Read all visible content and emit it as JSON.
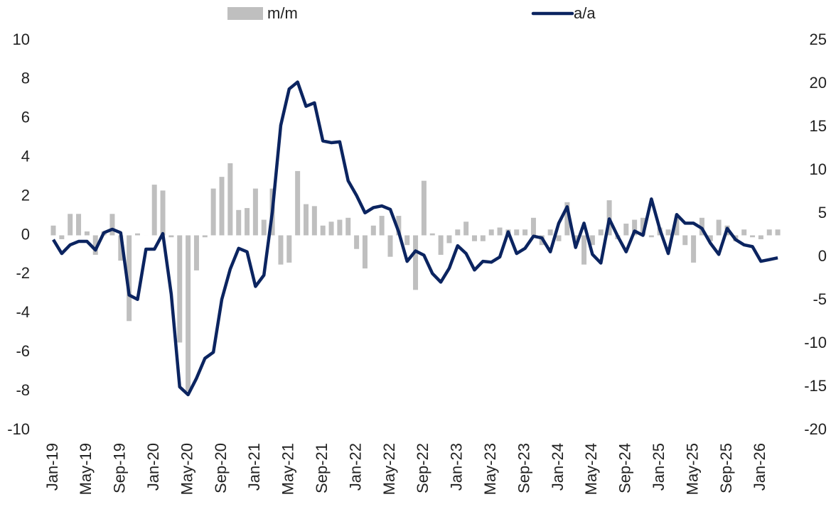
{
  "chart_data": {
    "type": "combo",
    "categories": [
      "Jan-19",
      null,
      null,
      null,
      "May-19",
      null,
      null,
      null,
      "Sep-19",
      null,
      null,
      null,
      "Jan-20",
      null,
      null,
      null,
      "May-20",
      null,
      null,
      null,
      "Sep-20",
      null,
      null,
      null,
      "Jan-21",
      null,
      null,
      null,
      "May-21",
      null,
      null,
      null,
      "Sep-21",
      null,
      null,
      null,
      "Jan-22",
      null,
      null,
      null,
      "May-22",
      null,
      null,
      null,
      "Sep-22",
      null,
      null,
      null,
      "Jan-23",
      null,
      null,
      null,
      "May-23",
      null,
      null,
      null,
      "Sep-23",
      null,
      null,
      null,
      "Jan-24",
      null,
      null,
      null,
      "May-24",
      null,
      null,
      null,
      "Sep-24",
      null,
      null,
      null,
      "Jan-25",
      null,
      null,
      null,
      "May-25",
      null,
      null,
      null,
      "Sep-25",
      null,
      null,
      null,
      "Jan-26",
      null,
      null
    ],
    "series": [
      {
        "name": "m/m",
        "type": "bar",
        "color": "#bfbfbf",
        "values": [
          0.5,
          -0.2,
          1.1,
          1.1,
          0.2,
          -1.0,
          0.2,
          1.1,
          -1.3,
          -4.4,
          0.1,
          0.0,
          2.6,
          2.3,
          -0.1,
          -5.5,
          -8.0,
          -1.8,
          -0.1,
          2.4,
          3.0,
          3.7,
          1.3,
          1.4,
          2.4,
          0.8,
          2.4,
          -1.5,
          -1.4,
          3.3,
          1.6,
          1.5,
          0.5,
          0.7,
          0.8,
          0.9,
          -0.7,
          -1.7,
          0.5,
          1.0,
          -1.1,
          1.0,
          -0.5,
          -2.8,
          2.8,
          0.1,
          -1.0,
          -0.4,
          0.3,
          0.7,
          -0.3,
          -0.3,
          0.3,
          0.4,
          0.3,
          0.3,
          0.3,
          0.9,
          -0.5,
          0.3,
          -0.3,
          1.7,
          -0.3,
          -1.5,
          -0.5,
          0.3,
          1.8,
          -0.2,
          0.6,
          0.8,
          0.9,
          -0.1,
          0.4,
          0.3,
          0.9,
          -0.5,
          -1.4,
          0.9,
          -0.3,
          0.8,
          0.5,
          -0.3,
          0.3,
          -0.1,
          -0.2,
          0.3,
          0.3
        ]
      },
      {
        "name": "a/a",
        "type": "line",
        "axis": "y2",
        "color": "#0b2460",
        "values": [
          2.0,
          0.4,
          1.4,
          1.8,
          1.8,
          0.8,
          2.8,
          3.2,
          2.8,
          -4.4,
          -4.9,
          0.9,
          0.9,
          2.7,
          -4.3,
          -15.0,
          -15.9,
          -14.0,
          -11.7,
          -11.0,
          -4.9,
          -1.4,
          1.0,
          0.6,
          -3.4,
          -2.1,
          5.2,
          15.2,
          19.4,
          20.2,
          17.4,
          17.8,
          13.4,
          13.2,
          13.3,
          8.8,
          7.1,
          5.1,
          5.7,
          5.9,
          5.5,
          2.9,
          -0.5,
          0.7,
          0.2,
          -1.9,
          -2.9,
          -1.3,
          1.3,
          0.4,
          -1.5,
          -0.5,
          -0.6,
          0.0,
          2.9,
          0.4,
          1.0,
          2.4,
          2.2,
          0.6,
          3.9,
          5.8,
          1.1,
          3.9,
          0.3,
          -0.7,
          4.4,
          2.4,
          0.6,
          3.0,
          2.5,
          6.7,
          3.2,
          0.4,
          4.9,
          3.9,
          3.9,
          3.3,
          1.6,
          0.3,
          3.3,
          2.0,
          1.4,
          1.2,
          -0.5,
          -0.3,
          -0.1
        ]
      }
    ],
    "ylim": [
      -10,
      10
    ],
    "yticks": [
      -10,
      -8,
      -6,
      -4,
      -2,
      0,
      2,
      4,
      6,
      8,
      10
    ],
    "y2lim": [
      -20,
      25
    ],
    "y2ticks": [
      -20,
      -15,
      -10,
      -5,
      0,
      5,
      10,
      15,
      20,
      25
    ],
    "grid": false,
    "legend": "top"
  }
}
